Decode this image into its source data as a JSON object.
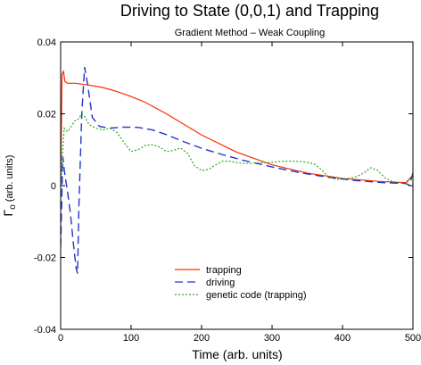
{
  "chart_data": {
    "type": "line",
    "title": "Driving to State (0,0,1) and Trapping",
    "subtitle": "Gradient Method – Weak Coupling",
    "xlabel": "Time (arb. units)",
    "ylabel": "Γ",
    "ylabel_sub": "o",
    "ylabel_suffix": " (arb. units)",
    "xlim": [
      0,
      500
    ],
    "ylim": [
      -0.04,
      0.04
    ],
    "xticks": [
      0,
      100,
      200,
      300,
      400,
      500
    ],
    "yticks": [
      -0.04,
      -0.02,
      0,
      0.02,
      0.04
    ],
    "ytick_labels": [
      "-0.04",
      "-0.02",
      "0",
      "0.02",
      "0.04"
    ],
    "grid": false,
    "legend_position": "lower-center",
    "series": [
      {
        "name": "trapping",
        "color": "#ff2a00",
        "dash": "solid",
        "x": [
          0,
          2,
          4,
          6,
          10,
          20,
          40,
          60,
          80,
          100,
          120,
          150,
          200,
          250,
          300,
          350,
          400,
          450,
          490,
          500
        ],
        "y": [
          0.0,
          0.031,
          0.0318,
          0.029,
          0.0285,
          0.0285,
          0.028,
          0.0273,
          0.0262,
          0.0248,
          0.0232,
          0.02,
          0.0141,
          0.0093,
          0.0058,
          0.0035,
          0.002,
          0.0012,
          0.0008,
          0.003
        ]
      },
      {
        "name": "driving",
        "color": "#2233cc",
        "dash": "dashed",
        "x": [
          0,
          3,
          6,
          10,
          14,
          18,
          22,
          24,
          26,
          30,
          34,
          38,
          45,
          55,
          70,
          90,
          110,
          130,
          150,
          175,
          200,
          230,
          260,
          300,
          340,
          380,
          420,
          460,
          490,
          495,
          500
        ],
        "y": [
          -0.017,
          0.008,
          0.003,
          -0.002,
          -0.008,
          -0.016,
          -0.023,
          -0.0245,
          -0.005,
          0.02,
          0.033,
          0.0285,
          0.019,
          0.0165,
          0.016,
          0.0163,
          0.0162,
          0.0155,
          0.0142,
          0.0122,
          0.0104,
          0.0086,
          0.007,
          0.0052,
          0.0036,
          0.0023,
          0.0014,
          0.0008,
          0.0006,
          0.0001,
          0.0035
        ]
      },
      {
        "name": "genetic code (trapping)",
        "color": "#22aa22",
        "dash": "dotted",
        "x": [
          0,
          5,
          10,
          15,
          20,
          25,
          30,
          35,
          40,
          50,
          60,
          70,
          80,
          90,
          100,
          110,
          120,
          130,
          140,
          150,
          160,
          170,
          180,
          190,
          200,
          210,
          220,
          230,
          240,
          250,
          260,
          270,
          280,
          290,
          300,
          310,
          320,
          330,
          340,
          350,
          360,
          370,
          380,
          390,
          400,
          410,
          420,
          430,
          440,
          450,
          460,
          470,
          480,
          490,
          500
        ],
        "y": [
          0.0,
          0.016,
          0.015,
          0.0165,
          0.018,
          0.0185,
          0.02,
          0.019,
          0.017,
          0.016,
          0.0155,
          0.016,
          0.0148,
          0.012,
          0.0095,
          0.01,
          0.0112,
          0.0114,
          0.0108,
          0.0095,
          0.0098,
          0.0105,
          0.009,
          0.0055,
          0.0042,
          0.0045,
          0.0058,
          0.0068,
          0.0068,
          0.0064,
          0.0062,
          0.0062,
          0.0063,
          0.0064,
          0.0065,
          0.0067,
          0.0068,
          0.0068,
          0.0067,
          0.0065,
          0.006,
          0.0045,
          0.0025,
          0.0018,
          0.0018,
          0.002,
          0.0025,
          0.0035,
          0.005,
          0.0042,
          0.0022,
          0.0012,
          0.0008,
          0.0005,
          0.003
        ]
      }
    ]
  }
}
